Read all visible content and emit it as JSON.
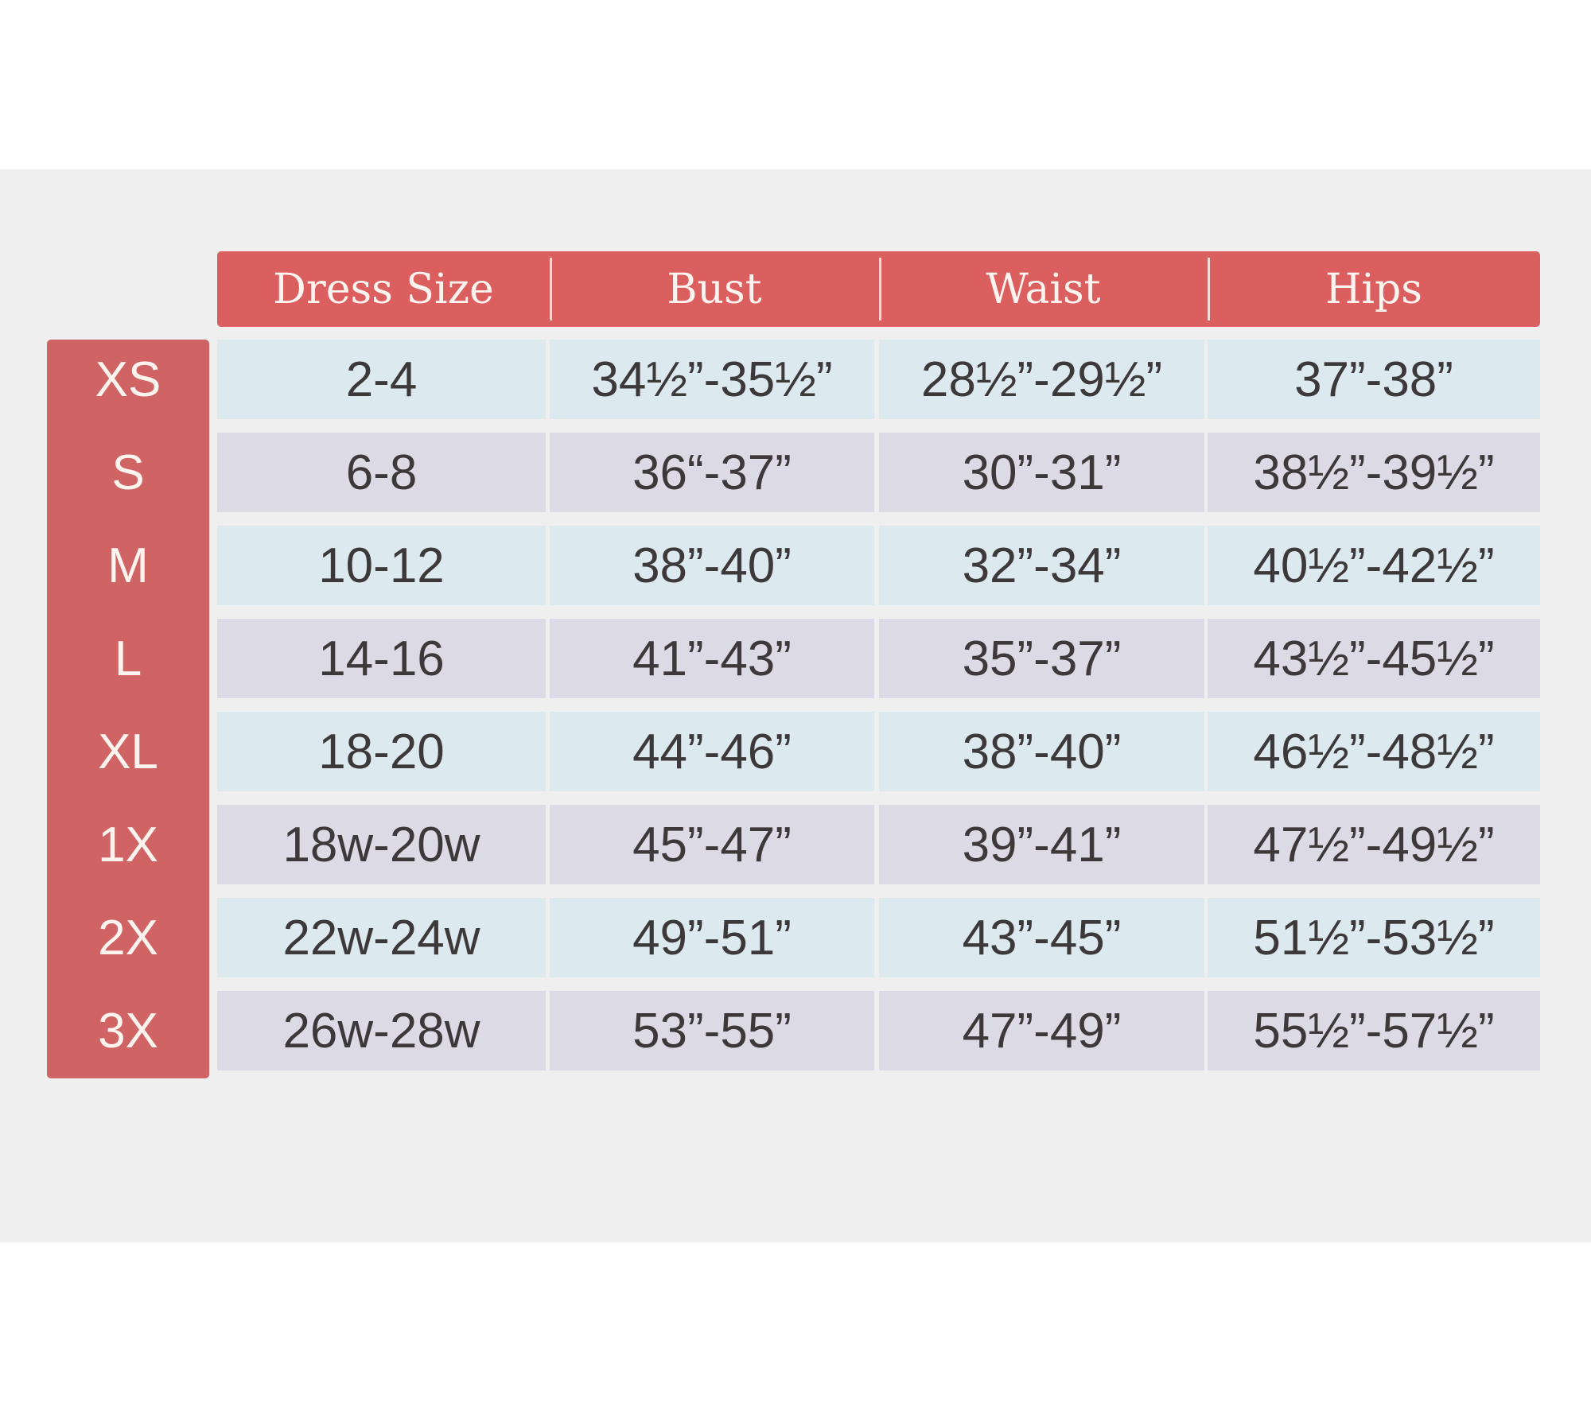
{
  "colors": {
    "header_bg": "#dc5f60",
    "sidebar_bg": "#d06465",
    "row_odd_bg": "#dce9ef",
    "row_even_bg": "#dcdbe5",
    "band_bg": "#efefef",
    "text": "#3d393a"
  },
  "table": {
    "columns": [
      "Dress Size",
      "Bust",
      "Waist",
      "Hips"
    ],
    "rows": [
      {
        "size": "XS",
        "cells": [
          "2-4",
          "34½”-35½”",
          "28½”-29½”",
          "37”-38”"
        ]
      },
      {
        "size": "S",
        "cells": [
          "6-8",
          "36“-37”",
          "30”-31”",
          "38½”-39½”"
        ]
      },
      {
        "size": "M",
        "cells": [
          "10-12",
          "38”-40”",
          "32”-34”",
          "40½”-42½”"
        ]
      },
      {
        "size": "L",
        "cells": [
          "14-16",
          "41”-43”",
          "35”-37”",
          "43½”-45½”"
        ]
      },
      {
        "size": "XL",
        "cells": [
          "18-20",
          "44”-46”",
          "38”-40”",
          "46½”-48½”"
        ]
      },
      {
        "size": "1X",
        "cells": [
          "18w-20w",
          "45”-47”",
          "39”-41”",
          "47½”-49½”"
        ]
      },
      {
        "size": "2X",
        "cells": [
          "22w-24w",
          "49”-51”",
          "43”-45”",
          "51½”-53½”"
        ]
      },
      {
        "size": "3X",
        "cells": [
          "26w-28w",
          "53”-55”",
          "47”-49”",
          "55½”-57½”"
        ]
      }
    ]
  }
}
